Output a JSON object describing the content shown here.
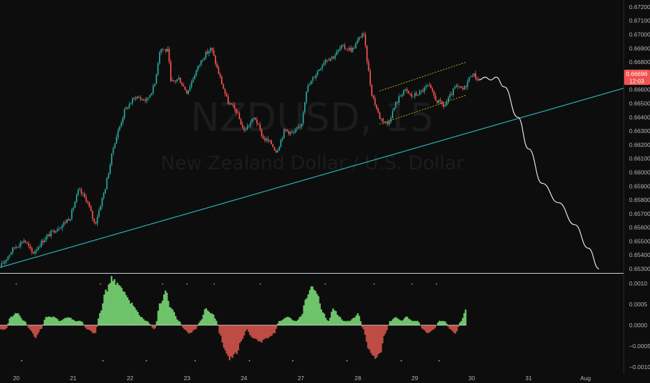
{
  "watermark": {
    "symbol": "NZDUSD, 15",
    "description": "New Zealand Dollar / U.S. Dollar"
  },
  "colors": {
    "background": "#0d0d0d",
    "bull": "#26a69a",
    "bear": "#ef5350",
    "trendline": "#2ab3b8",
    "channel": "#c8b400",
    "projection": "#e6e6e6",
    "osc_pos": "#7ee07a",
    "osc_neg": "#d9574f",
    "price_tag": "#ef5350"
  },
  "price_tag": {
    "price": "0.66696",
    "countdown": "12:03"
  },
  "chart_data": [
    {
      "type": "candlestick",
      "title": "",
      "yaxis": {
        "ticks": [
          "0.67200",
          "0.67100",
          "0.67000",
          "0.66900",
          "0.66800",
          "0.66600",
          "0.66500",
          "0.66400",
          "0.66300",
          "0.66200",
          "0.66100",
          "0.66000",
          "0.65900",
          "0.65800",
          "0.65700",
          "0.65600",
          "0.65500",
          "0.65400",
          "0.65300"
        ],
        "range": [
          0.6528,
          0.6723
        ]
      },
      "xaxis": {
        "ticks": [
          "20",
          "21",
          "22",
          "23",
          "24",
          "27",
          "28",
          "29",
          "30",
          "31",
          "Aug"
        ],
        "range": [
          0,
          11.5
        ],
        "tick_positions": [
          0.3,
          1.35,
          2.4,
          3.45,
          4.5,
          5.55,
          6.6,
          7.65,
          8.7,
          9.75,
          10.8
        ]
      },
      "price_path": [
        [
          0.0,
          0.6531
        ],
        [
          0.25,
          0.6545
        ],
        [
          0.45,
          0.6551
        ],
        [
          0.6,
          0.6541
        ],
        [
          0.8,
          0.6551
        ],
        [
          1.0,
          0.6558
        ],
        [
          1.15,
          0.6562
        ],
        [
          1.3,
          0.6568
        ],
        [
          1.45,
          0.6587
        ],
        [
          1.6,
          0.658
        ],
        [
          1.75,
          0.6562
        ],
        [
          1.95,
          0.659
        ],
        [
          2.1,
          0.662
        ],
        [
          2.3,
          0.6645
        ],
        [
          2.5,
          0.6655
        ],
        [
          2.7,
          0.6652
        ],
        [
          2.85,
          0.6663
        ],
        [
          2.95,
          0.669
        ],
        [
          3.1,
          0.6688
        ],
        [
          3.15,
          0.6665
        ],
        [
          3.3,
          0.6668
        ],
        [
          3.45,
          0.6658
        ],
        [
          3.6,
          0.6672
        ],
        [
          3.75,
          0.6684
        ],
        [
          3.9,
          0.669
        ],
        [
          4.0,
          0.6676
        ],
        [
          4.2,
          0.6651
        ],
        [
          4.35,
          0.6645
        ],
        [
          4.5,
          0.663
        ],
        [
          4.7,
          0.664
        ],
        [
          4.85,
          0.6625
        ],
        [
          5.0,
          0.6621
        ],
        [
          5.1,
          0.6615
        ],
        [
          5.25,
          0.6631
        ],
        [
          5.4,
          0.6628
        ],
        [
          5.55,
          0.6633
        ],
        [
          5.65,
          0.666
        ],
        [
          5.85,
          0.6673
        ],
        [
          6.0,
          0.6682
        ],
        [
          6.15,
          0.6684
        ],
        [
          6.3,
          0.6691
        ],
        [
          6.5,
          0.6689
        ],
        [
          6.7,
          0.6702
        ],
        [
          6.85,
          0.6658
        ],
        [
          7.0,
          0.664
        ],
        [
          7.15,
          0.6635
        ],
        [
          7.3,
          0.665
        ],
        [
          7.45,
          0.666
        ],
        [
          7.6,
          0.6655
        ],
        [
          7.75,
          0.6658
        ],
        [
          7.9,
          0.6663
        ],
        [
          8.05,
          0.6652
        ],
        [
          8.2,
          0.6648
        ],
        [
          8.4,
          0.6662
        ],
        [
          8.55,
          0.666
        ],
        [
          8.7,
          0.6672
        ],
        [
          8.83,
          0.6667
        ]
      ],
      "projection_path": [
        [
          8.83,
          0.6667
        ],
        [
          8.95,
          0.6669
        ],
        [
          9.05,
          0.6667
        ],
        [
          9.15,
          0.6669
        ],
        [
          9.3,
          0.6662
        ],
        [
          9.55,
          0.664
        ],
        [
          9.75,
          0.6617
        ],
        [
          10.0,
          0.6592
        ],
        [
          10.3,
          0.6578
        ],
        [
          10.6,
          0.6562
        ],
        [
          10.85,
          0.6545
        ],
        [
          11.05,
          0.653
        ]
      ],
      "trendline": {
        "from": [
          0.0,
          0.6531
        ],
        "to": [
          11.5,
          0.6661
        ]
      },
      "channel": {
        "upper": {
          "from": [
            7.0,
            0.6659
          ],
          "to": [
            8.6,
            0.668
          ]
        },
        "lower": {
          "from": [
            7.0,
            0.6635
          ],
          "to": [
            8.6,
            0.6656
          ]
        }
      }
    },
    {
      "type": "area",
      "title": "",
      "yaxis": {
        "ticks": [
          "0.0010",
          "0.0005",
          "0.0000",
          "−0.0005",
          "−0.0010"
        ],
        "range": [
          -0.00115,
          0.00115
        ]
      },
      "histogram": [
        [
          0.0,
          -0.0001
        ],
        [
          0.1,
          -0.0001
        ],
        [
          0.2,
          0.0002
        ],
        [
          0.3,
          0.0003
        ],
        [
          0.45,
          0.0001
        ],
        [
          0.55,
          -0.0001
        ],
        [
          0.65,
          -0.0003
        ],
        [
          0.75,
          -0.0001
        ],
        [
          0.85,
          0.0002
        ],
        [
          1.0,
          0.0002
        ],
        [
          1.1,
          0.0001
        ],
        [
          1.25,
          0.0002
        ],
        [
          1.4,
          0.0001
        ],
        [
          1.5,
          0.0001
        ],
        [
          1.6,
          -0.0001
        ],
        [
          1.75,
          -0.0002
        ],
        [
          1.85,
          0.0003
        ],
        [
          1.95,
          0.0008
        ],
        [
          2.05,
          0.0011
        ],
        [
          2.15,
          0.001
        ],
        [
          2.3,
          0.0008
        ],
        [
          2.45,
          0.0005
        ],
        [
          2.6,
          0.0002
        ],
        [
          2.7,
          0.0001
        ],
        [
          2.85,
          -0.0001
        ],
        [
          2.95,
          0.0005
        ],
        [
          3.05,
          0.0008
        ],
        [
          3.15,
          0.0004
        ],
        [
          3.3,
          0.0001
        ],
        [
          3.4,
          -0.0001
        ],
        [
          3.5,
          -0.0002
        ],
        [
          3.6,
          -0.0001
        ],
        [
          3.7,
          0.0001
        ],
        [
          3.8,
          0.0004
        ],
        [
          3.9,
          0.0003
        ],
        [
          4.0,
          0.0001
        ],
        [
          4.05,
          -0.0002
        ],
        [
          4.15,
          -0.0006
        ],
        [
          4.25,
          -0.0008
        ],
        [
          4.35,
          -0.0007
        ],
        [
          4.45,
          -0.0004
        ],
        [
          4.55,
          -0.0001
        ],
        [
          4.65,
          -0.0003
        ],
        [
          4.8,
          -0.0004
        ],
        [
          4.95,
          -0.0003
        ],
        [
          5.05,
          -0.0002
        ],
        [
          5.15,
          0.0001
        ],
        [
          5.3,
          0.0002
        ],
        [
          5.45,
          0.0001
        ],
        [
          5.55,
          0.0002
        ],
        [
          5.65,
          0.0007
        ],
        [
          5.75,
          0.001
        ],
        [
          5.85,
          0.0007
        ],
        [
          5.95,
          0.0003
        ],
        [
          6.05,
          0.0001
        ],
        [
          6.15,
          0.0004
        ],
        [
          6.25,
          0.0002
        ],
        [
          6.35,
          0.0001
        ],
        [
          6.45,
          0.0001
        ],
        [
          6.55,
          0.0002
        ],
        [
          6.6,
          0.0003
        ],
        [
          6.7,
          -0.0001
        ],
        [
          6.8,
          -0.0006
        ],
        [
          6.9,
          -0.0008
        ],
        [
          7.0,
          -0.0007
        ],
        [
          7.1,
          -0.0002
        ],
        [
          7.2,
          0.0001
        ],
        [
          7.3,
          0.0002
        ],
        [
          7.4,
          0.0001
        ],
        [
          7.5,
          0.0002
        ],
        [
          7.6,
          0.0001
        ],
        [
          7.7,
          0.0001
        ],
        [
          7.8,
          -0.0001
        ],
        [
          7.9,
          -0.0002
        ],
        [
          8.0,
          -0.0001
        ],
        [
          8.1,
          0.0001
        ],
        [
          8.2,
          0.0001
        ],
        [
          8.3,
          -0.0001
        ],
        [
          8.4,
          -0.0002
        ],
        [
          8.5,
          0.0001
        ],
        [
          8.6,
          0.0004
        ]
      ],
      "dots_top": [
        0.3,
        1.85,
        3.0,
        3.45,
        3.95,
        4.8,
        6.0,
        6.9,
        7.6,
        8.05
      ],
      "dots_bottom": [
        0.4,
        1.9,
        2.7,
        3.6,
        4.6,
        5.4,
        6.4,
        7.4,
        8.1
      ]
    }
  ]
}
